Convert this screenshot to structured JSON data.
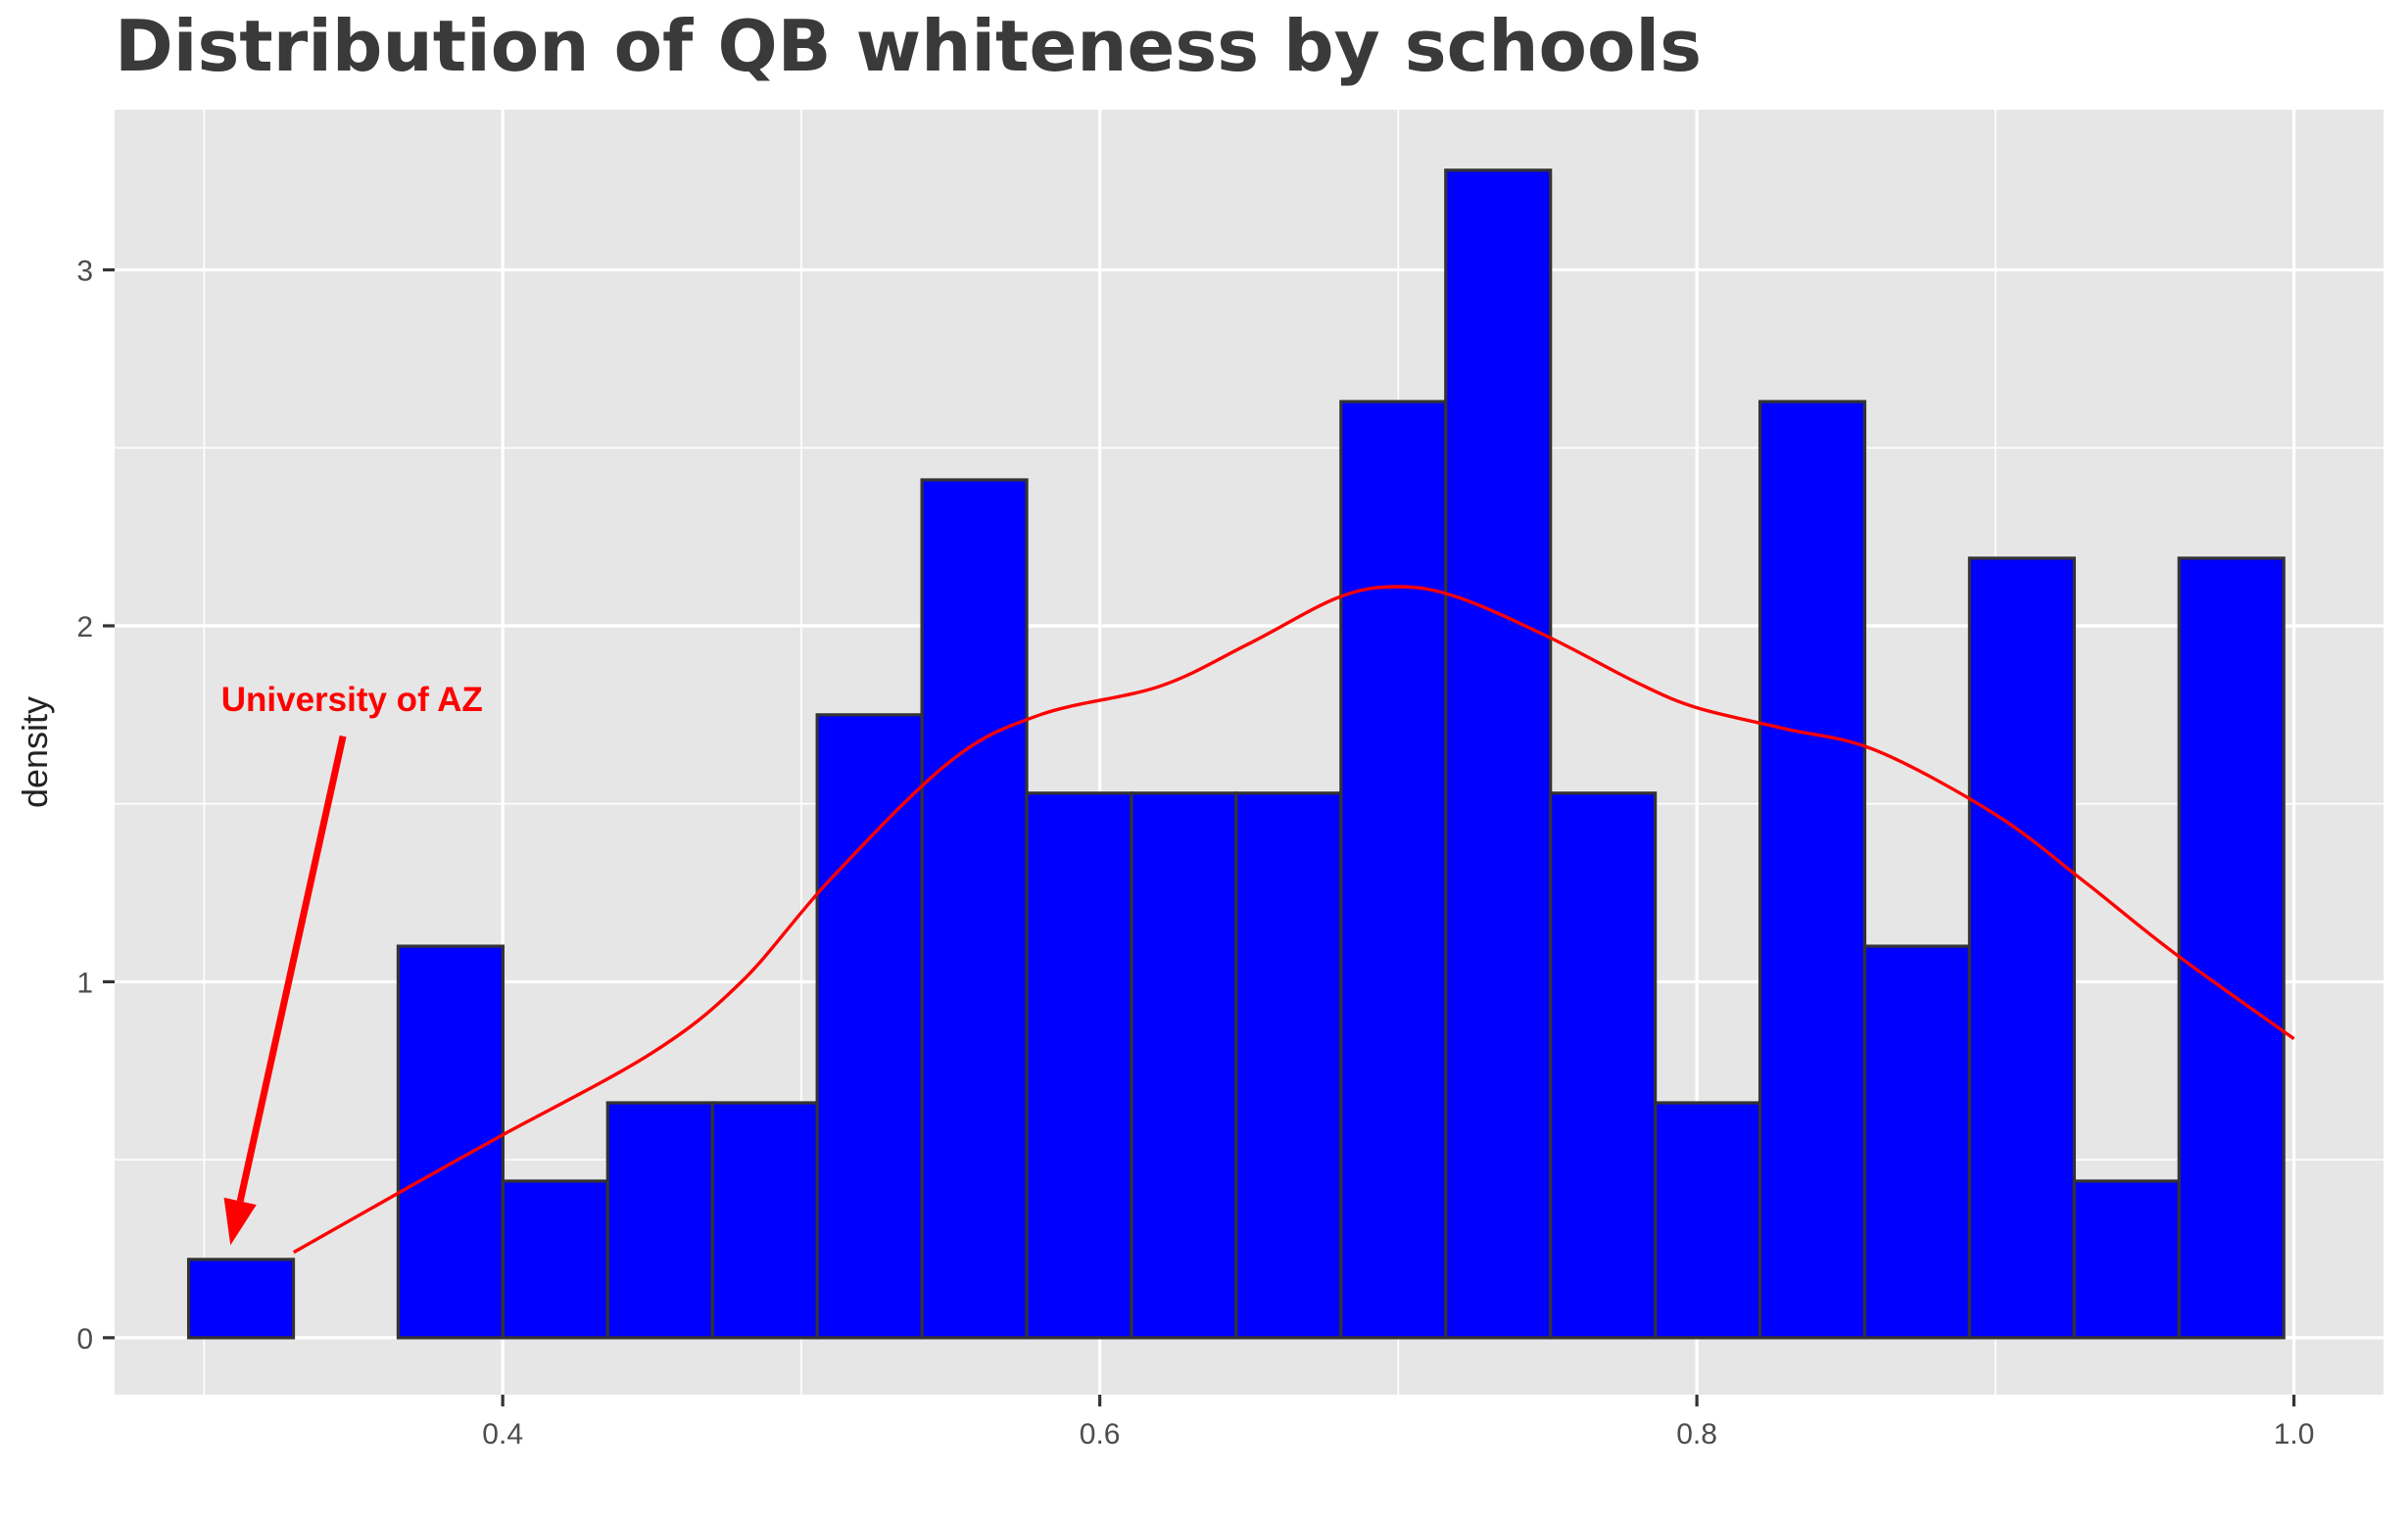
{
  "chart_data": {
    "type": "bar",
    "title": "Distribution of QB whiteness by schools",
    "xlabel": "",
    "ylabel": "density",
    "xlim": [
      0.27,
      1.03
    ],
    "ylim": [
      -0.16,
      3.45
    ],
    "x_ticks": [
      {
        "value": 0.4,
        "label": "0.4"
      },
      {
        "value": 0.6,
        "label": "0.6"
      },
      {
        "value": 0.8,
        "label": "0.8"
      },
      {
        "value": 1.0,
        "label": "1.0"
      }
    ],
    "y_ticks": [
      {
        "value": 0,
        "label": "0"
      },
      {
        "value": 1,
        "label": "1"
      },
      {
        "value": 2,
        "label": "2"
      },
      {
        "value": 3,
        "label": "3"
      }
    ],
    "grid": true,
    "histogram": {
      "bin_start": 0.2948,
      "bin_width": 0.03509,
      "values": [
        0.22,
        0.0,
        1.1,
        0.44,
        0.66,
        0.66,
        1.75,
        2.41,
        1.53,
        1.53,
        1.53,
        2.63,
        3.28,
        1.53,
        0.66,
        2.63,
        1.1,
        2.19,
        0.44,
        2.19
      ],
      "fill_color": "#0000FF",
      "edge_color": "#333333"
    },
    "density_curve": {
      "color": "#FF0000",
      "x": [
        0.33,
        0.37,
        0.4,
        0.45,
        0.48,
        0.51,
        0.55,
        0.58,
        0.62,
        0.65,
        0.68,
        0.7,
        0.72,
        0.75,
        0.78,
        0.8,
        0.83,
        0.86,
        0.9,
        0.93,
        0.96,
        1.0
      ],
      "y": [
        0.24,
        0.43,
        0.57,
        0.8,
        1.0,
        1.29,
        1.62,
        1.75,
        1.83,
        1.95,
        2.08,
        2.11,
        2.08,
        1.97,
        1.84,
        1.77,
        1.71,
        1.65,
        1.47,
        1.28,
        1.08,
        0.84
      ]
    },
    "annotations": [
      {
        "text": "University of AZ",
        "color": "#FF0000",
        "text_x": 0.3495,
        "text_y": 1.76,
        "arrow_from": [
          0.3465,
          1.69
        ],
        "arrow_to": [
          0.3088,
          0.26
        ]
      }
    ],
    "panel_background": "#E6E6E6",
    "gridline_color": "#FFFFFF"
  }
}
